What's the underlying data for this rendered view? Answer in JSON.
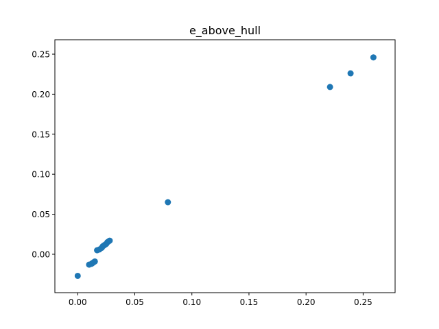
{
  "chart_data": {
    "type": "scatter",
    "title": "e_above_hull",
    "xlabel": "",
    "ylabel": "",
    "xlim": [
      -0.02,
      0.278
    ],
    "ylim": [
      -0.048,
      0.268
    ],
    "xticks": [
      0.0,
      0.05,
      0.1,
      0.15,
      0.2,
      0.25
    ],
    "yticks": [
      0.0,
      0.05,
      0.1,
      0.15,
      0.2,
      0.25
    ],
    "xtick_labels": [
      "0.00",
      "0.05",
      "0.10",
      "0.15",
      "0.20",
      "0.25"
    ],
    "ytick_labels": [
      "0.00",
      "0.05",
      "0.10",
      "0.15",
      "0.20",
      "0.25"
    ],
    "grid": false,
    "marker_color": "#1f77b4",
    "points": [
      {
        "x": 0.0,
        "y": -0.027
      },
      {
        "x": 0.01,
        "y": -0.013
      },
      {
        "x": 0.012,
        "y": -0.012
      },
      {
        "x": 0.013,
        "y": -0.011
      },
      {
        "x": 0.014,
        "y": -0.01
      },
      {
        "x": 0.015,
        "y": -0.009
      },
      {
        "x": 0.017,
        "y": 0.005
      },
      {
        "x": 0.019,
        "y": 0.006
      },
      {
        "x": 0.021,
        "y": 0.008
      },
      {
        "x": 0.022,
        "y": 0.01
      },
      {
        "x": 0.023,
        "y": 0.011
      },
      {
        "x": 0.024,
        "y": 0.012
      },
      {
        "x": 0.025,
        "y": 0.013
      },
      {
        "x": 0.026,
        "y": 0.015
      },
      {
        "x": 0.027,
        "y": 0.016
      },
      {
        "x": 0.028,
        "y": 0.017
      },
      {
        "x": 0.079,
        "y": 0.065
      },
      {
        "x": 0.221,
        "y": 0.209
      },
      {
        "x": 0.239,
        "y": 0.226
      },
      {
        "x": 0.259,
        "y": 0.246
      }
    ]
  }
}
